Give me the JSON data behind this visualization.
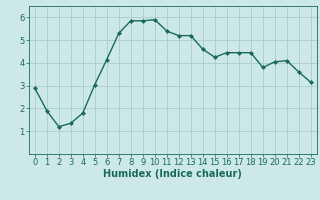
{
  "x": [
    0,
    1,
    2,
    3,
    4,
    5,
    6,
    7,
    8,
    9,
    10,
    11,
    12,
    13,
    14,
    15,
    16,
    17,
    18,
    19,
    20,
    21,
    22,
    23
  ],
  "y": [
    2.9,
    1.9,
    1.2,
    1.35,
    1.8,
    3.05,
    4.15,
    5.3,
    5.85,
    5.85,
    5.9,
    5.4,
    5.2,
    5.2,
    4.6,
    4.25,
    4.45,
    4.45,
    4.45,
    3.8,
    4.05,
    4.1,
    3.6,
    3.15
  ],
  "xlabel": "Humidex (Indice chaleur)",
  "xlim": [
    -0.5,
    23.5
  ],
  "ylim": [
    0,
    6.5
  ],
  "yticks": [
    1,
    2,
    3,
    4,
    5,
    6
  ],
  "xticks": [
    0,
    1,
    2,
    3,
    4,
    5,
    6,
    7,
    8,
    9,
    10,
    11,
    12,
    13,
    14,
    15,
    16,
    17,
    18,
    19,
    20,
    21,
    22,
    23
  ],
  "line_color": "#1a6b5a",
  "marker": "D",
  "marker_size": 2.0,
  "bg_color": "#cce8e8",
  "grid_color": "#b0d0d0",
  "xlabel_fontsize": 7,
  "tick_fontsize": 6,
  "linewidth": 1.0
}
